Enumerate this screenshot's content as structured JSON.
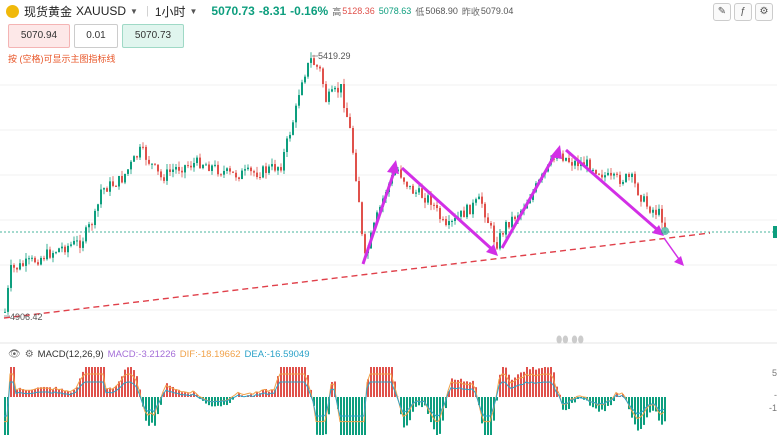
{
  "header": {
    "name": "现货黄金",
    "code": "XAUUSD",
    "timeframe": "1小时",
    "price": "5070.73",
    "change": "-8.31",
    "change_pct": "-0.16%",
    "high_label": "高",
    "high": "5128.36",
    "open": "5078.63",
    "low_label": "低",
    "low": "5068.90",
    "prev_close_label": "昨收",
    "prev_close": "5079.04"
  },
  "order_panel": {
    "sell_price": "5070.94",
    "quantity": "0.01",
    "buy_price": "5070.73",
    "hint": "按 (空格)可显示主图指标线"
  },
  "chart_labels": {
    "peak_label": "5419.29",
    "trough_label": "4906.42"
  },
  "macd": {
    "label": "MACD(12,26,9)",
    "macd": "MACD:-3.21226",
    "dif": "DIF:-18.19662",
    "dea": "DEA:-16.59049"
  },
  "right_axis": {
    "tick_top": "5",
    "tick_mid": "-",
    "tick_bottom": "-1"
  },
  "colors": {
    "up": "#0d9e7e",
    "down": "#e0514b",
    "arrow": "#d22fe6",
    "trendline": "#e0404a"
  },
  "icons": [
    "gold-logo-icon",
    "caret-down-icon",
    "settings-icon",
    "eye-icon",
    "indicator-icon"
  ]
}
